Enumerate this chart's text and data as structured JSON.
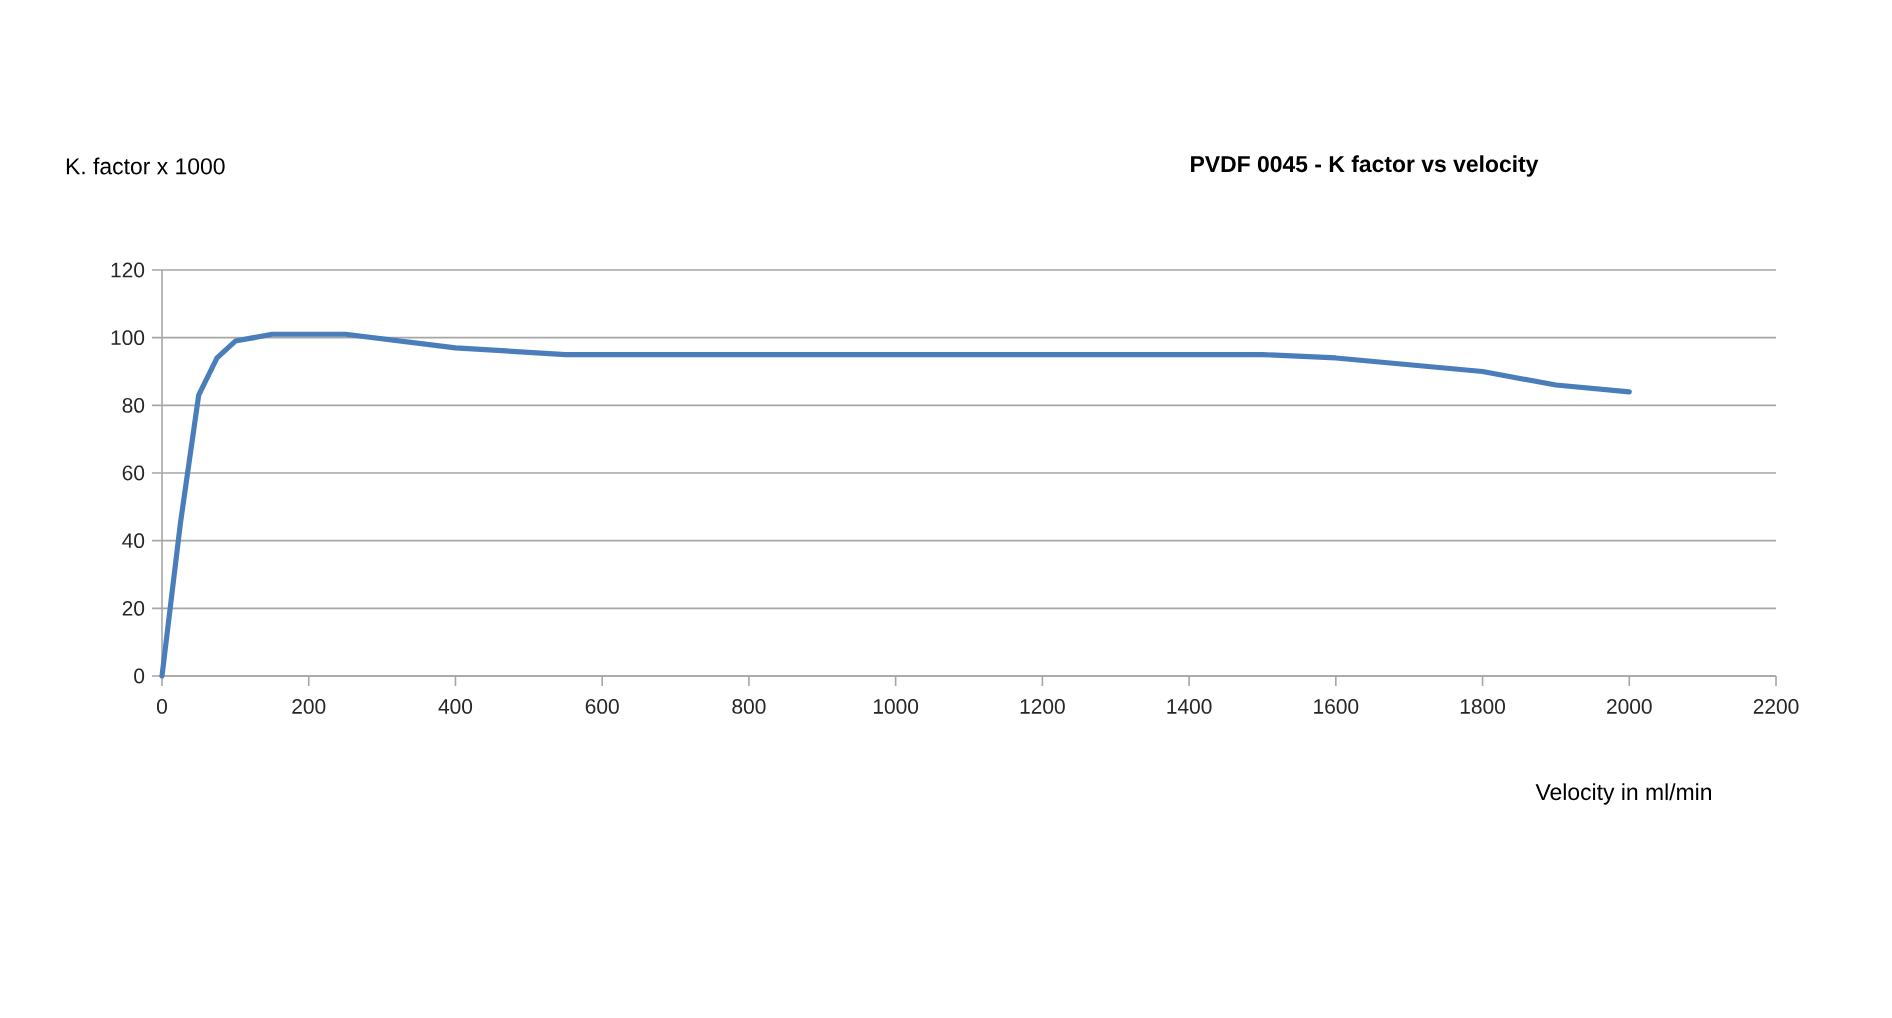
{
  "chart_data": {
    "type": "line",
    "title": "PVDF 0045  - K factor vs velocity",
    "xlabel": "Velocity in ml/min",
    "ylabel": "K. factor x 1000",
    "x": [
      0,
      25,
      50,
      75,
      100,
      150,
      250,
      400,
      550,
      600,
      1500,
      1600,
      1700,
      1800,
      1900,
      2000
    ],
    "series": [
      {
        "color": "#4a7ebb",
        "values": [
          0,
          45,
          83,
          94,
          99,
          101,
          101,
          97,
          95,
          95,
          95,
          94,
          92,
          90,
          86,
          84
        ]
      }
    ],
    "xlim": [
      0,
      2200
    ],
    "xticks": [
      0,
      200,
      400,
      600,
      800,
      1000,
      1200,
      1400,
      1600,
      1800,
      2000,
      2200
    ],
    "ylim": [
      0,
      120
    ],
    "yticks": [
      0,
      20,
      40,
      60,
      80,
      100,
      120
    ],
    "grid": "y",
    "marker": "none",
    "line_style": "solid"
  }
}
